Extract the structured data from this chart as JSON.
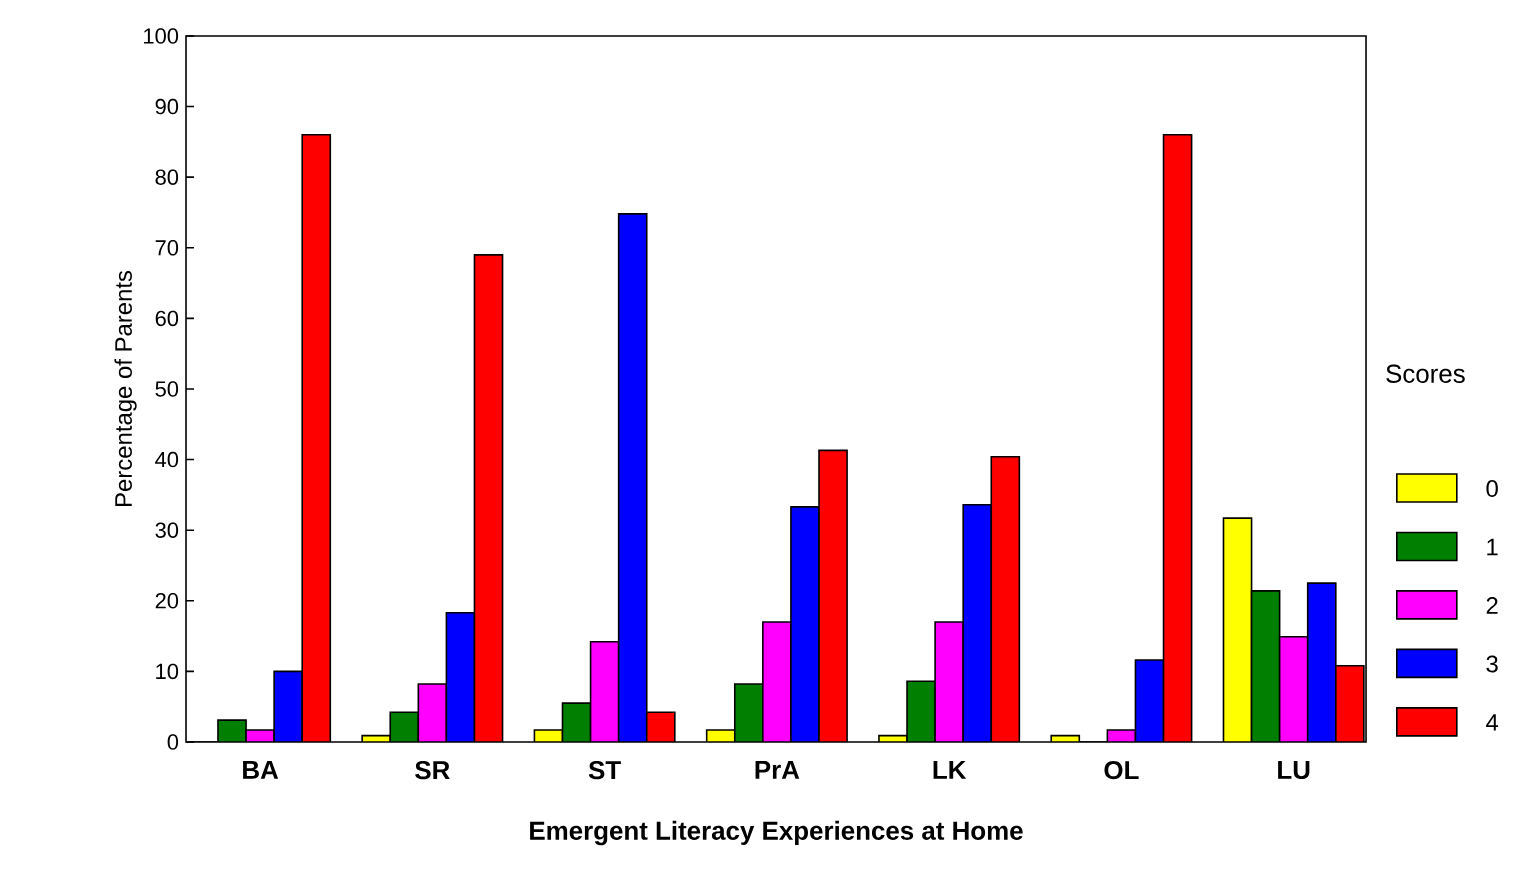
{
  "chart_data": {
    "type": "bar",
    "xlabel": "Emergent Literacy Experiences at Home",
    "ylabel": "Percentage of Parents",
    "legend_title": "Scores",
    "categories": [
      "BA",
      "SR",
      "ST",
      "PrA",
      "LK",
      "OL",
      "LU"
    ],
    "series": [
      {
        "name": "0",
        "color": "#ffff00",
        "values": [
          0,
          0.9,
          1.7,
          1.7,
          0.9,
          0.9,
          31.7
        ]
      },
      {
        "name": "1",
        "color": "#007f00",
        "values": [
          3.1,
          4.2,
          5.5,
          8.2,
          8.6,
          0,
          21.4
        ]
      },
      {
        "name": "2",
        "color": "#ff00ff",
        "values": [
          1.7,
          8.2,
          14.2,
          17,
          17,
          1.7,
          14.9
        ]
      },
      {
        "name": "3",
        "color": "#0000ff",
        "values": [
          10,
          18.3,
          74.8,
          33.3,
          33.6,
          11.6,
          22.5
        ]
      },
      {
        "name": "4",
        "color": "#ff0000",
        "values": [
          86,
          69,
          4.2,
          41.3,
          40.4,
          86,
          10.8
        ]
      }
    ],
    "ylim": [
      0,
      100
    ],
    "yticks": [
      0,
      10,
      20,
      30,
      40,
      50,
      60,
      70,
      80,
      90,
      100
    ],
    "grid": false,
    "legend": "right"
  }
}
